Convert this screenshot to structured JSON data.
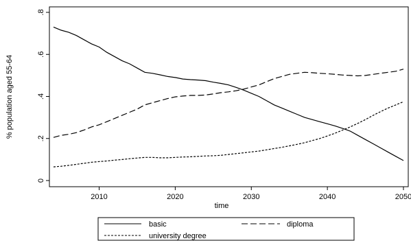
{
  "chart_data": {
    "type": "line",
    "xlabel": "time",
    "ylabel": "% population aged 55-64",
    "xlim": [
      2004,
      2050
    ],
    "ylim": [
      0,
      0.8
    ],
    "x_ticks": [
      2010,
      2020,
      2030,
      2040,
      2050
    ],
    "x_tick_labels": [
      "2010",
      "2020",
      "2030",
      "2040",
      "2050"
    ],
    "y_ticks": [
      0,
      0.2,
      0.4,
      0.6,
      0.8
    ],
    "y_tick_labels": [
      "0",
      ".2",
      ".4",
      ".6",
      ".8"
    ],
    "grid": false,
    "legend_position": "bottom",
    "x": [
      2004,
      2005,
      2006,
      2007,
      2008,
      2009,
      2010,
      2011,
      2012,
      2013,
      2014,
      2015,
      2016,
      2017,
      2018,
      2019,
      2020,
      2021,
      2022,
      2023,
      2024,
      2025,
      2026,
      2027,
      2028,
      2029,
      2030,
      2031,
      2032,
      2033,
      2034,
      2035,
      2036,
      2037,
      2038,
      2039,
      2040,
      2041,
      2042,
      2043,
      2044,
      2045,
      2046,
      2047,
      2048,
      2049,
      2050
    ],
    "series": [
      {
        "name": "basic",
        "dash": "solid",
        "values": [
          0.73,
          0.715,
          0.705,
          0.69,
          0.67,
          0.65,
          0.635,
          0.61,
          0.59,
          0.57,
          0.555,
          0.535,
          0.515,
          0.51,
          0.503,
          0.495,
          0.49,
          0.483,
          0.48,
          0.478,
          0.475,
          0.468,
          0.462,
          0.455,
          0.443,
          0.43,
          0.415,
          0.4,
          0.38,
          0.36,
          0.345,
          0.33,
          0.315,
          0.3,
          0.29,
          0.28,
          0.27,
          0.26,
          0.248,
          0.235,
          0.215,
          0.195,
          0.175,
          0.155,
          0.135,
          0.115,
          0.095
        ]
      },
      {
        "name": "diploma",
        "dash": "long",
        "values": [
          0.205,
          0.215,
          0.22,
          0.228,
          0.24,
          0.255,
          0.265,
          0.28,
          0.295,
          0.31,
          0.325,
          0.34,
          0.36,
          0.37,
          0.38,
          0.39,
          0.398,
          0.402,
          0.405,
          0.405,
          0.407,
          0.412,
          0.418,
          0.422,
          0.427,
          0.435,
          0.445,
          0.455,
          0.47,
          0.485,
          0.495,
          0.505,
          0.51,
          0.515,
          0.513,
          0.51,
          0.508,
          0.505,
          0.502,
          0.5,
          0.498,
          0.5,
          0.505,
          0.51,
          0.515,
          0.52,
          0.53
        ]
      },
      {
        "name": "university degree",
        "dash": "short",
        "values": [
          0.065,
          0.068,
          0.072,
          0.077,
          0.082,
          0.087,
          0.09,
          0.093,
          0.097,
          0.1,
          0.104,
          0.107,
          0.11,
          0.11,
          0.108,
          0.108,
          0.11,
          0.112,
          0.113,
          0.115,
          0.117,
          0.118,
          0.12,
          0.124,
          0.128,
          0.132,
          0.136,
          0.14,
          0.146,
          0.152,
          0.158,
          0.165,
          0.172,
          0.18,
          0.19,
          0.2,
          0.212,
          0.225,
          0.24,
          0.255,
          0.272,
          0.29,
          0.31,
          0.328,
          0.345,
          0.36,
          0.375
        ]
      }
    ]
  }
}
